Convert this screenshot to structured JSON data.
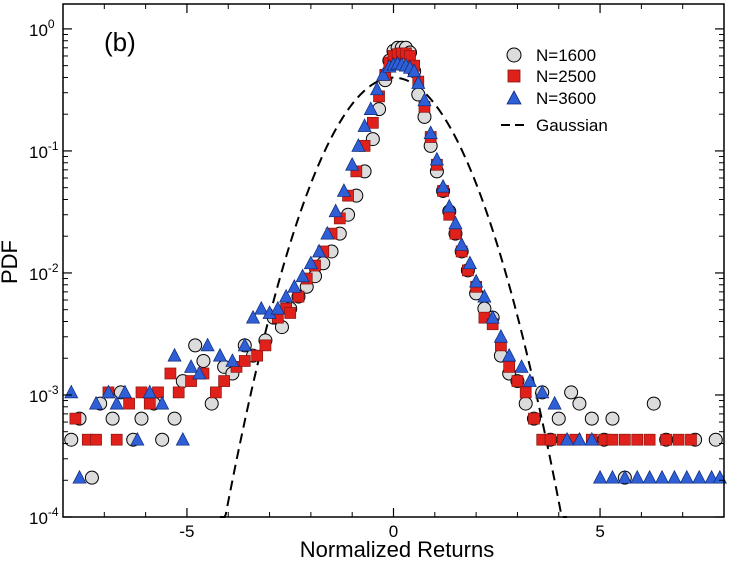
{
  "chart_data": {
    "type": "scatter",
    "panel_label": "(b)",
    "xlabel": "Normalized Returns",
    "ylabel": "PDF",
    "xlim": [
      -8,
      8
    ],
    "ylim": [
      0.0001,
      1.6
    ],
    "yscale": "log",
    "x_ticks": [
      {
        "value": -5,
        "label": "-5"
      },
      {
        "value": 0,
        "label": "0"
      },
      {
        "value": 5,
        "label": "5"
      }
    ],
    "y_ticks": [
      {
        "value": 0.0001,
        "base": "10",
        "exp": "-4"
      },
      {
        "value": 0.001,
        "base": "10",
        "exp": "-3"
      },
      {
        "value": 0.01,
        "base": "10",
        "exp": "-2"
      },
      {
        "value": 0.1,
        "base": "10",
        "exp": "-1"
      },
      {
        "value": 1,
        "base": "10",
        "exp": "0"
      }
    ],
    "legend_position": "top-right",
    "series": [
      {
        "name": "N=1600",
        "marker": "circle",
        "color": "#dcdcdc",
        "points": [
          [
            -7.8,
            0.00043
          ],
          [
            -7.6,
            0.00064
          ],
          [
            -7.3,
            0.00021
          ],
          [
            -7.1,
            0.00085
          ],
          [
            -6.8,
            0.00064
          ],
          [
            -6.6,
            0.00105
          ],
          [
            -6.3,
            0.00043
          ],
          [
            -6.1,
            0.00064
          ],
          [
            -5.8,
            0.00085
          ],
          [
            -5.6,
            0.00043
          ],
          [
            -5.3,
            0.00064
          ],
          [
            -5.1,
            0.0013
          ],
          [
            -4.8,
            0.00255
          ],
          [
            -4.6,
            0.0019
          ],
          [
            -4.4,
            0.00085
          ],
          [
            -4.1,
            0.0017
          ],
          [
            -3.9,
            0.0015
          ],
          [
            -3.6,
            0.00255
          ],
          [
            -3.4,
            0.0021
          ],
          [
            -3.1,
            0.0028
          ],
          [
            -2.9,
            0.0043
          ],
          [
            -2.7,
            0.0036
          ],
          [
            -2.5,
            0.0051
          ],
          [
            -2.3,
            0.0064
          ],
          [
            -2.1,
            0.0077
          ],
          [
            -1.9,
            0.0094
          ],
          [
            -1.7,
            0.012
          ],
          [
            -1.5,
            0.015
          ],
          [
            -1.3,
            0.021
          ],
          [
            -1.1,
            0.03
          ],
          [
            -0.9,
            0.043
          ],
          [
            -0.7,
            0.068
          ],
          [
            -0.5,
            0.125
          ],
          [
            -0.35,
            0.22
          ],
          [
            -0.2,
            0.38
          ],
          [
            -0.1,
            0.55
          ],
          [
            0.0,
            0.66
          ],
          [
            0.1,
            0.7
          ],
          [
            0.2,
            0.7
          ],
          [
            0.3,
            0.7
          ],
          [
            0.4,
            0.64
          ],
          [
            0.5,
            0.45
          ],
          [
            0.6,
            0.29
          ],
          [
            0.75,
            0.19
          ],
          [
            0.9,
            0.11
          ],
          [
            1.05,
            0.068
          ],
          [
            1.2,
            0.047
          ],
          [
            1.35,
            0.032
          ],
          [
            1.5,
            0.021
          ],
          [
            1.65,
            0.015
          ],
          [
            1.8,
            0.0105
          ],
          [
            2.0,
            0.0068
          ],
          [
            2.2,
            0.0051
          ],
          [
            2.4,
            0.0043
          ],
          [
            2.6,
            0.0021
          ],
          [
            2.8,
            0.0015
          ],
          [
            3.0,
            0.0013
          ],
          [
            3.2,
            0.00085
          ],
          [
            3.4,
            0.00064
          ],
          [
            3.6,
            0.00105
          ],
          [
            3.8,
            0.00043
          ],
          [
            4.0,
            0.00064
          ],
          [
            4.3,
            0.00105
          ],
          [
            4.5,
            0.00085
          ],
          [
            4.8,
            0.00064
          ],
          [
            5.1,
            0.00043
          ],
          [
            5.3,
            0.00064
          ],
          [
            5.6,
            0.00021
          ],
          [
            6.3,
            0.00085
          ],
          [
            6.6,
            0.00043
          ],
          [
            7.3,
            0.00043
          ],
          [
            7.8,
            0.00043
          ]
        ]
      },
      {
        "name": "N=2500",
        "marker": "square",
        "color": "#e0211b",
        "points": [
          [
            -7.7,
            0.00064
          ],
          [
            -7.4,
            0.00043
          ],
          [
            -7.2,
            0.00043
          ],
          [
            -6.9,
            0.00105
          ],
          [
            -6.7,
            0.00043
          ],
          [
            -6.4,
            0.00085
          ],
          [
            -6.1,
            0.00105
          ],
          [
            -5.9,
            0.00085
          ],
          [
            -5.7,
            0.00105
          ],
          [
            -5.4,
            0.0015
          ],
          [
            -5.2,
            0.00105
          ],
          [
            -4.9,
            0.0013
          ],
          [
            -4.6,
            0.0015
          ],
          [
            -4.3,
            0.00105
          ],
          [
            -4.1,
            0.0013
          ],
          [
            -3.8,
            0.0017
          ],
          [
            -3.6,
            0.0019
          ],
          [
            -3.3,
            0.0021
          ],
          [
            -3.1,
            0.00255
          ],
          [
            -2.8,
            0.0043
          ],
          [
            -2.6,
            0.0051
          ],
          [
            -2.5,
            0.0047
          ],
          [
            -2.3,
            0.0064
          ],
          [
            -2.1,
            0.009
          ],
          [
            -1.9,
            0.0115
          ],
          [
            -1.7,
            0.015
          ],
          [
            -1.5,
            0.021
          ],
          [
            -1.3,
            0.028
          ],
          [
            -1.1,
            0.043
          ],
          [
            -0.9,
            0.068
          ],
          [
            -0.7,
            0.11
          ],
          [
            -0.5,
            0.17
          ],
          [
            -0.35,
            0.28
          ],
          [
            -0.2,
            0.42
          ],
          [
            -0.1,
            0.53
          ],
          [
            0.0,
            0.6
          ],
          [
            0.1,
            0.62
          ],
          [
            0.2,
            0.63
          ],
          [
            0.3,
            0.63
          ],
          [
            0.4,
            0.6
          ],
          [
            0.5,
            0.5
          ],
          [
            0.6,
            0.37
          ],
          [
            0.75,
            0.23
          ],
          [
            0.9,
            0.13
          ],
          [
            1.05,
            0.077
          ],
          [
            1.2,
            0.047
          ],
          [
            1.35,
            0.03
          ],
          [
            1.5,
            0.021
          ],
          [
            1.65,
            0.015
          ],
          [
            1.8,
            0.0105
          ],
          [
            2.0,
            0.0077
          ],
          [
            2.2,
            0.0043
          ],
          [
            2.4,
            0.0038
          ],
          [
            2.6,
            0.00255
          ],
          [
            2.8,
            0.0017
          ],
          [
            3.0,
            0.0013
          ],
          [
            3.2,
            0.00105
          ],
          [
            3.4,
            0.00064
          ],
          [
            3.6,
            0.00043
          ],
          [
            3.8,
            0.00043
          ],
          [
            4.1,
            0.00043
          ],
          [
            4.4,
            0.00043
          ],
          [
            4.8,
            0.00043
          ],
          [
            5.1,
            0.00043
          ],
          [
            5.3,
            0.00043
          ],
          [
            5.6,
            0.00043
          ],
          [
            5.9,
            0.00043
          ],
          [
            6.2,
            0.00043
          ],
          [
            6.6,
            0.00043
          ],
          [
            6.9,
            0.00043
          ],
          [
            7.2,
            0.00043
          ]
        ]
      },
      {
        "name": "N=3600",
        "marker": "triangle",
        "color": "#2f5fd6",
        "points": [
          [
            -7.8,
            0.00105
          ],
          [
            -7.6,
            0.00021
          ],
          [
            -7.2,
            0.00085
          ],
          [
            -6.9,
            0.00105
          ],
          [
            -6.7,
            0.00085
          ],
          [
            -6.5,
            0.00105
          ],
          [
            -6.2,
            0.00043
          ],
          [
            -5.9,
            0.00105
          ],
          [
            -5.6,
            0.00085
          ],
          [
            -5.3,
            0.0021
          ],
          [
            -5.1,
            0.00043
          ],
          [
            -4.9,
            0.0017
          ],
          [
            -4.7,
            0.0015
          ],
          [
            -4.5,
            0.00255
          ],
          [
            -4.2,
            0.0021
          ],
          [
            -3.9,
            0.0019
          ],
          [
            -3.6,
            0.00255
          ],
          [
            -3.4,
            0.0043
          ],
          [
            -3.2,
            0.0051
          ],
          [
            -3.0,
            0.0047
          ],
          [
            -2.8,
            0.0051
          ],
          [
            -2.6,
            0.0064
          ],
          [
            -2.4,
            0.0077
          ],
          [
            -2.2,
            0.0094
          ],
          [
            -2.0,
            0.012
          ],
          [
            -1.8,
            0.015
          ],
          [
            -1.6,
            0.021
          ],
          [
            -1.4,
            0.032
          ],
          [
            -1.2,
            0.047
          ],
          [
            -1.0,
            0.077
          ],
          [
            -0.85,
            0.11
          ],
          [
            -0.7,
            0.16
          ],
          [
            -0.55,
            0.22
          ],
          [
            -0.4,
            0.32
          ],
          [
            -0.25,
            0.42
          ],
          [
            -0.1,
            0.49
          ],
          [
            0.0,
            0.51
          ],
          [
            0.1,
            0.52
          ],
          [
            0.2,
            0.51
          ],
          [
            0.3,
            0.5
          ],
          [
            0.4,
            0.48
          ],
          [
            0.5,
            0.45
          ],
          [
            0.6,
            0.36
          ],
          [
            0.75,
            0.26
          ],
          [
            0.9,
            0.14
          ],
          [
            1.05,
            0.085
          ],
          [
            1.2,
            0.051
          ],
          [
            1.35,
            0.035
          ],
          [
            1.5,
            0.0255
          ],
          [
            1.65,
            0.017
          ],
          [
            1.85,
            0.012
          ],
          [
            2.0,
            0.0085
          ],
          [
            2.2,
            0.0064
          ],
          [
            2.4,
            0.0043
          ],
          [
            2.6,
            0.003
          ],
          [
            2.8,
            0.0021
          ],
          [
            3.1,
            0.0017
          ],
          [
            3.3,
            0.0013
          ],
          [
            3.6,
            0.00105
          ],
          [
            3.9,
            0.00085
          ],
          [
            4.2,
            0.00043
          ],
          [
            4.5,
            0.00043
          ],
          [
            4.8,
            0.00043
          ],
          [
            5.0,
            0.00021
          ],
          [
            5.3,
            0.00021
          ],
          [
            5.6,
            0.00021
          ],
          [
            5.9,
            0.00021
          ],
          [
            6.2,
            0.00021
          ],
          [
            6.5,
            0.00021
          ],
          [
            6.8,
            0.00021
          ],
          [
            7.1,
            0.00021
          ],
          [
            7.4,
            0.00021
          ],
          [
            7.7,
            0.00021
          ],
          [
            7.9,
            0.00021
          ]
        ]
      },
      {
        "name": "Gaussian",
        "marker": "dashed-line",
        "color": "#000000",
        "function": "normal_pdf",
        "mean": 0,
        "sigma": 1,
        "x_range": [
          -4.2,
          4.2
        ]
      }
    ]
  }
}
